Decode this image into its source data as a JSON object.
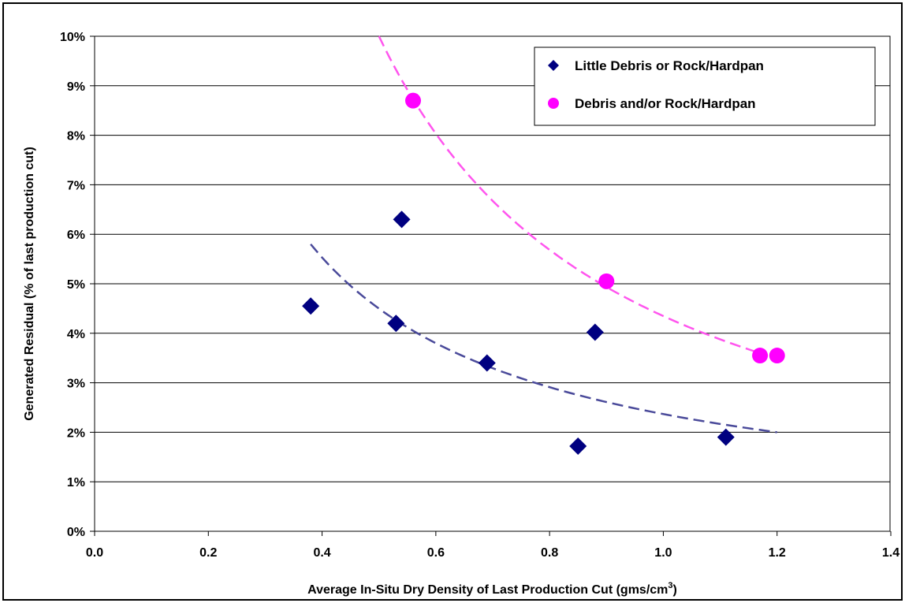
{
  "chart_data": {
    "type": "scatter",
    "title": "",
    "xlabel": "Average In-Situ Dry Density of Last Production Cut (gms/cm",
    "xlabel_sup": "3",
    "xlabel_end": ")",
    "ylabel": "Generated Residual (% of last production cut)",
    "xlim": [
      0.0,
      1.4
    ],
    "ylim": [
      0,
      10
    ],
    "x_ticks": [
      "0.0",
      "0.2",
      "0.4",
      "0.6",
      "0.8",
      "1.0",
      "1.2",
      "1.4"
    ],
    "x_tick_values": [
      0.0,
      0.2,
      0.4,
      0.6,
      0.8,
      1.0,
      1.2,
      1.4
    ],
    "y_ticks": [
      "0%",
      "1%",
      "2%",
      "3%",
      "4%",
      "5%",
      "6%",
      "7%",
      "8%",
      "9%",
      "10%"
    ],
    "y_tick_values": [
      0,
      1,
      2,
      3,
      4,
      5,
      6,
      7,
      8,
      9,
      10
    ],
    "grid": "horizontal",
    "legend_position": "top-right",
    "series": [
      {
        "name": "Little Debris or Rock/Hardpan",
        "marker": "diamond",
        "color": "#000080",
        "x": [
          0.38,
          0.53,
          0.54,
          0.69,
          0.85,
          0.88,
          1.11
        ],
        "y": [
          4.55,
          4.2,
          6.3,
          3.4,
          1.72,
          4.02,
          1.9
        ],
        "trend": {
          "type": "power",
          "color": "#4a4a9a",
          "x_start": 0.38,
          "x_end": 1.2,
          "y_start": 5.8,
          "y_end": 2.0
        }
      },
      {
        "name": "Debris and/or Rock/Hardpan",
        "marker": "circle",
        "color": "#ff00ff",
        "x": [
          0.56,
          0.9,
          1.17,
          1.2
        ],
        "y": [
          8.7,
          5.05,
          3.55,
          3.55
        ],
        "trend": {
          "type": "power",
          "color": "#ff55ee",
          "x_start": 0.5,
          "x_end": 1.17,
          "y_start": 10.0,
          "y_end": 3.6
        }
      }
    ]
  }
}
